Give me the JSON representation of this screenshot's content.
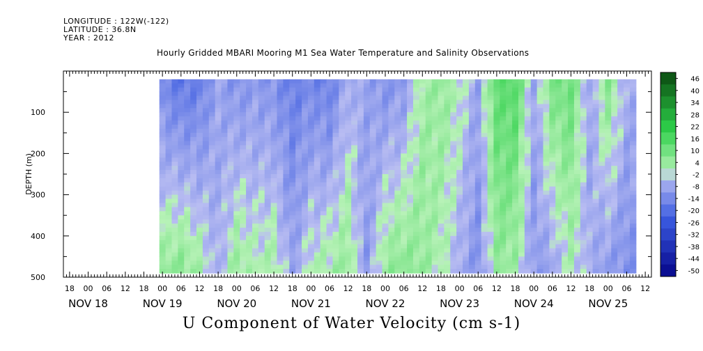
{
  "header": {
    "longitude": "LONGITUDE : 122W(-122)",
    "latitude": "LATITUDE : 36.8N",
    "year": "YEAR : 2012"
  },
  "title": "Hourly Gridded MBARI Mooring M1 Sea Water Temperature and Salinity Observations",
  "bottom_title": "U Component of Water Velocity (cm s-1)",
  "colors": {
    "neg_min": "#06068a",
    "neg_mid": "#3a5ae0",
    "neutral_low": "#b9bdf2",
    "neutral_high": "#b8f2b8",
    "pos_mid": "#2ed04a",
    "pos_max": "#0a4a10"
  },
  "chart_data": {
    "type": "heatmap",
    "xlabel": "",
    "ylabel": "DEPTH (m)",
    "ylim": [
      500,
      0
    ],
    "data_depth_range": [
      20,
      490
    ],
    "y_ticks": [
      100,
      200,
      300,
      400,
      500
    ],
    "x_hour_ticks": [
      "18",
      "00",
      "06",
      "12",
      "18",
      "00",
      "06",
      "12",
      "18",
      "00",
      "06",
      "12",
      "18",
      "00",
      "06",
      "12",
      "18",
      "00",
      "06",
      "12",
      "18",
      "00",
      "06",
      "12",
      "18",
      "00",
      "06",
      "12",
      "18",
      "00",
      "06",
      "12"
    ],
    "x_day_labels": [
      "NOV 18",
      "NOV 19",
      "NOV 20",
      "NOV 21",
      "NOV 22",
      "NOV 23",
      "NOV 24",
      "NOV 25"
    ],
    "x_range_hours": [
      -32,
      158
    ],
    "data_x_range_hours": [
      -1,
      153
    ],
    "colorbar": {
      "levels": [
        "46",
        "40",
        "34",
        "28",
        "22",
        "16",
        "10",
        "4",
        "-2",
        "-8",
        "-14",
        "-20",
        "-26",
        "-32",
        "-38",
        "-44",
        "-50"
      ],
      "range": [
        -50,
        50
      ]
    },
    "column_profiles": [
      {
        "hour": 0,
        "top": -12,
        "bottom": 6
      },
      {
        "hour": 6,
        "top": -16,
        "bottom": 8
      },
      {
        "hour": 12,
        "top": -14,
        "bottom": 4
      },
      {
        "hour": 18,
        "top": -6,
        "bottom": -4
      },
      {
        "hour": 24,
        "top": -10,
        "bottom": 6
      },
      {
        "hour": 30,
        "top": -8,
        "bottom": 2
      },
      {
        "hour": 36,
        "top": -10,
        "bottom": 4
      },
      {
        "hour": 42,
        "top": -14,
        "bottom": -6
      },
      {
        "hour": 48,
        "top": -12,
        "bottom": 2
      },
      {
        "hour": 54,
        "top": -14,
        "bottom": 4
      },
      {
        "hour": 60,
        "top": -4,
        "bottom": 6
      },
      {
        "hour": 66,
        "top": -6,
        "bottom": -8
      },
      {
        "hour": 72,
        "top": -10,
        "bottom": 6
      },
      {
        "hour": 78,
        "top": -8,
        "bottom": 8
      },
      {
        "hour": 84,
        "top": 4,
        "bottom": 6
      },
      {
        "hour": 90,
        "top": 6,
        "bottom": 2
      },
      {
        "hour": 96,
        "top": 2,
        "bottom": -4
      },
      {
        "hour": 102,
        "top": -6,
        "bottom": -10
      },
      {
        "hour": 108,
        "top": 14,
        "bottom": 6
      },
      {
        "hour": 114,
        "top": 16,
        "bottom": 4
      },
      {
        "hour": 120,
        "top": -6,
        "bottom": -8
      },
      {
        "hour": 126,
        "top": 10,
        "bottom": -6
      },
      {
        "hour": 132,
        "top": 12,
        "bottom": 2
      },
      {
        "hour": 138,
        "top": -6,
        "bottom": -4
      },
      {
        "hour": 144,
        "top": 8,
        "bottom": -8
      },
      {
        "hour": 150,
        "top": -4,
        "bottom": -10
      }
    ]
  }
}
